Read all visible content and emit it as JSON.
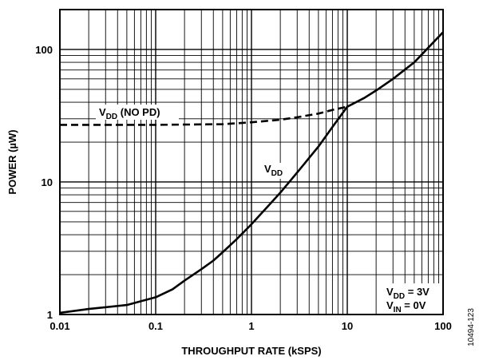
{
  "chart_data": {
    "type": "line",
    "x_scale": "log",
    "y_scale": "log",
    "xlim": [
      0.01,
      100
    ],
    "ylim": [
      1,
      200
    ],
    "grid": true,
    "xlabel": "THROUGHPUT RATE (kSPS)",
    "ylabel": "POWER (µW)",
    "x_ticks": [
      {
        "value": 0.01,
        "label": "0.01"
      },
      {
        "value": 0.1,
        "label": "0.1"
      },
      {
        "value": 1,
        "label": "1"
      },
      {
        "value": 10,
        "label": "10"
      },
      {
        "value": 100,
        "label": "100"
      }
    ],
    "y_ticks": [
      {
        "value": 1,
        "label": "1"
      },
      {
        "value": 10,
        "label": "10"
      },
      {
        "value": 100,
        "label": "100"
      }
    ],
    "series": [
      {
        "name_main": "V",
        "name_sub": "DD",
        "name_suffix": "",
        "style": "solid",
        "x": [
          0.01,
          0.02,
          0.05,
          0.1,
          0.15,
          0.2,
          0.3,
          0.4,
          0.5,
          0.7,
          1,
          1.5,
          2,
          3,
          5,
          7,
          10,
          15,
          20,
          30,
          50,
          70,
          100
        ],
        "y": [
          1.03,
          1.1,
          1.18,
          1.35,
          1.55,
          1.8,
          2.2,
          2.55,
          2.95,
          3.7,
          4.8,
          6.6,
          8.3,
          11.8,
          18.5,
          26,
          37,
          43,
          49,
          60,
          80,
          103,
          135
        ]
      },
      {
        "name_main": "V",
        "name_sub": "DD",
        "name_suffix": " (NO PD)",
        "style": "dashed",
        "x": [
          0.01,
          0.1,
          0.5,
          1,
          2,
          3,
          5,
          7,
          10
        ],
        "y": [
          27,
          27,
          27.3,
          28.2,
          29.5,
          30.8,
          32.8,
          35,
          37
        ]
      }
    ],
    "conditions": [
      {
        "main": "V",
        "sub": "DD",
        "suffix": " = 3V"
      },
      {
        "main": "V",
        "sub": "IN",
        "suffix": " = 0V"
      }
    ],
    "figure_id": "10494-123"
  }
}
